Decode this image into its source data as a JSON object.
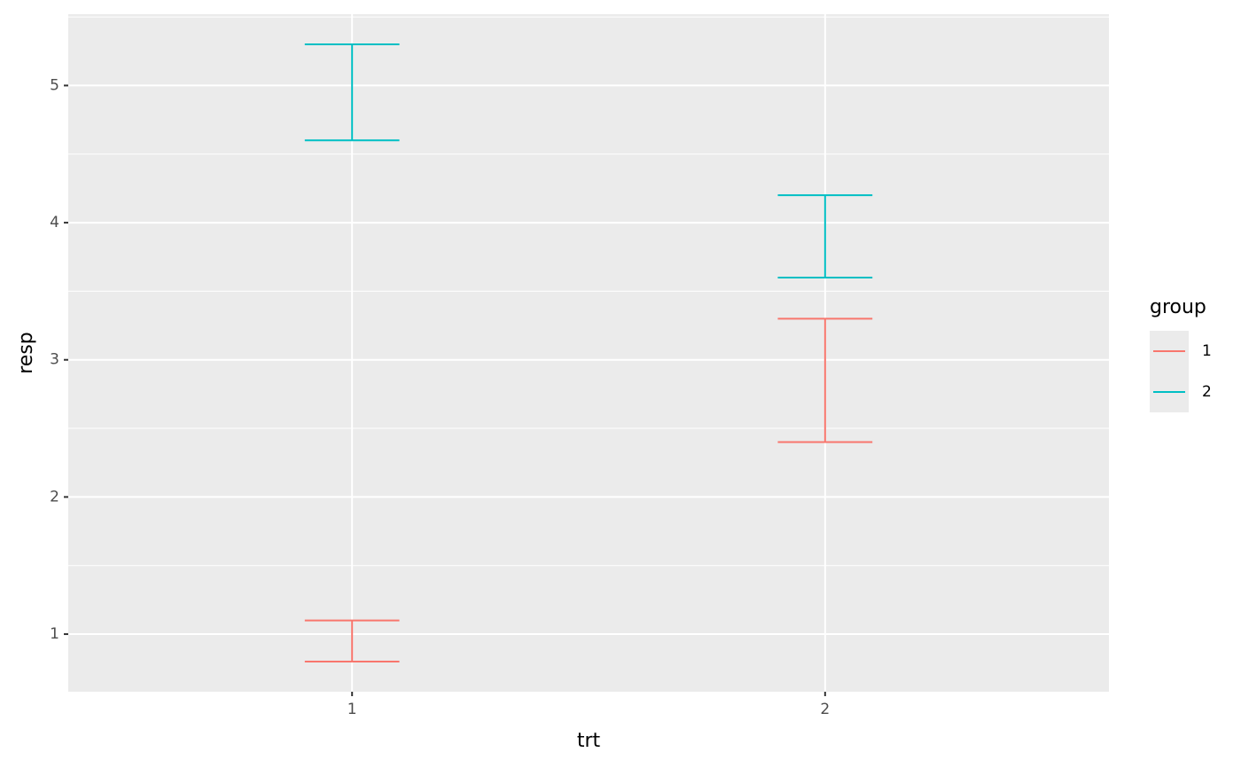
{
  "chart_data": {
    "type": "errorbar",
    "x_label": "trt",
    "y_label": "resp",
    "categories": [
      "1",
      "2"
    ],
    "legend_title": "group",
    "series": [
      {
        "name": "1",
        "color": "#F8766D",
        "ymin": [
          0.8,
          2.4
        ],
        "ymax": [
          1.1,
          3.3
        ]
      },
      {
        "name": "2",
        "color": "#00BFC4",
        "ymin": [
          4.6,
          3.6
        ],
        "ymax": [
          5.3,
          4.2
        ]
      }
    ],
    "ylim": [
      0.58,
      5.52
    ],
    "yticks": [
      1,
      2,
      3,
      4,
      5
    ],
    "grid": true
  }
}
